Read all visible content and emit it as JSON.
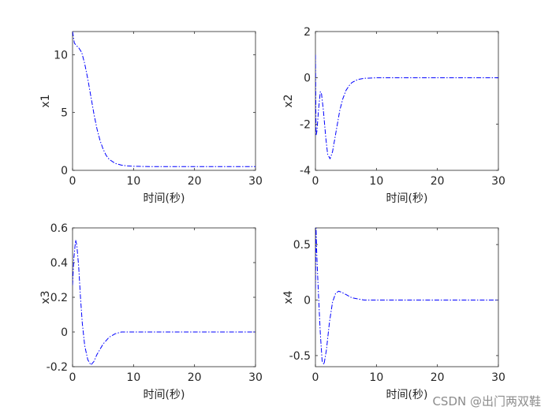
{
  "watermark": "CSDN @出门两双鞋",
  "colors": {
    "series": "#0000ff",
    "axes": "#262626",
    "background": "#ffffff"
  },
  "chart_data": [
    {
      "type": "line",
      "xlabel": "时间(秒)",
      "ylabel": "x1",
      "xlim": [
        0,
        30
      ],
      "ylim": [
        0,
        12
      ],
      "xticks": [
        0,
        10,
        20,
        30
      ],
      "yticks": [
        0,
        5,
        10
      ],
      "grid": false,
      "line_style": "dash-dot",
      "series": [
        {
          "x": [
            0,
            0.3,
            0.6,
            1,
            1.5,
            2,
            2.5,
            3,
            3.5,
            4,
            4.5,
            5,
            5.5,
            6,
            7,
            8,
            9,
            10,
            12,
            15,
            20,
            25,
            30
          ],
          "y": [
            12,
            11,
            10.8,
            10.6,
            10.2,
            9.2,
            7.9,
            6.4,
            4.9,
            3.6,
            2.6,
            1.85,
            1.3,
            0.95,
            0.6,
            0.45,
            0.38,
            0.35,
            0.33,
            0.32,
            0.32,
            0.32,
            0.32
          ]
        }
      ]
    },
    {
      "type": "line",
      "xlabel": "时间(秒)",
      "ylabel": "x2",
      "xlim": [
        0,
        30
      ],
      "ylim": [
        -4,
        2
      ],
      "xticks": [
        0,
        10,
        20,
        30
      ],
      "yticks": [
        -4,
        -2,
        0,
        2
      ],
      "grid": false,
      "line_style": "dash-dot",
      "series": [
        {
          "x": [
            0,
            0.1,
            0.25,
            0.5,
            0.8,
            1.0,
            1.3,
            1.7,
            2.0,
            2.4,
            2.8,
            3.2,
            3.6,
            4.0,
            4.5,
            5,
            5.5,
            6,
            7,
            8,
            10,
            15,
            20,
            30
          ],
          "y": [
            1.0,
            -2.5,
            -2.3,
            -1.4,
            -0.6,
            -0.7,
            -1.4,
            -2.6,
            -3.3,
            -3.5,
            -3.2,
            -2.6,
            -2.0,
            -1.4,
            -0.9,
            -0.55,
            -0.35,
            -0.2,
            -0.07,
            -0.02,
            0,
            0,
            0,
            0
          ]
        }
      ]
    },
    {
      "type": "line",
      "xlabel": "时间(秒)",
      "ylabel": "x3",
      "xlim": [
        0,
        30
      ],
      "ylim": [
        -0.2,
        0.6
      ],
      "xticks": [
        0,
        10,
        20,
        30
      ],
      "yticks": [
        -0.2,
        0,
        0.2,
        0.4,
        0.6
      ],
      "grid": false,
      "line_style": "dash-dot",
      "series": [
        {
          "x": [
            0,
            0.2,
            0.5,
            0.7,
            1.0,
            1.3,
            1.6,
            2.0,
            2.5,
            3.0,
            3.5,
            4.0,
            5,
            6,
            7,
            8,
            10,
            15,
            20,
            30
          ],
          "y": [
            0.27,
            0.42,
            0.53,
            0.5,
            0.38,
            0.2,
            0.05,
            -0.08,
            -0.16,
            -0.19,
            -0.17,
            -0.13,
            -0.07,
            -0.03,
            -0.01,
            0,
            0,
            0,
            0,
            0
          ]
        }
      ]
    },
    {
      "type": "line",
      "xlabel": "时间(秒)",
      "ylabel": "x4",
      "xlim": [
        0,
        30
      ],
      "ylim": [
        -0.6,
        0.65
      ],
      "xticks": [
        0,
        10,
        20,
        30
      ],
      "yticks": [
        -0.5,
        0,
        0.5
      ],
      "grid": false,
      "line_style": "dash-dot",
      "series": [
        {
          "x": [
            0,
            0.1,
            0.2,
            0.3,
            0.5,
            0.8,
            1.1,
            1.4,
            1.8,
            2.3,
            2.8,
            3.3,
            3.8,
            4.3,
            5,
            6,
            7,
            8,
            10,
            15,
            20,
            30
          ],
          "y": [
            0.1,
            0.65,
            0.45,
            0.3,
            0.05,
            -0.3,
            -0.55,
            -0.58,
            -0.45,
            -0.2,
            -0.02,
            0.06,
            0.08,
            0.07,
            0.05,
            0.02,
            0.01,
            0,
            0,
            0,
            0,
            0
          ]
        }
      ]
    }
  ]
}
